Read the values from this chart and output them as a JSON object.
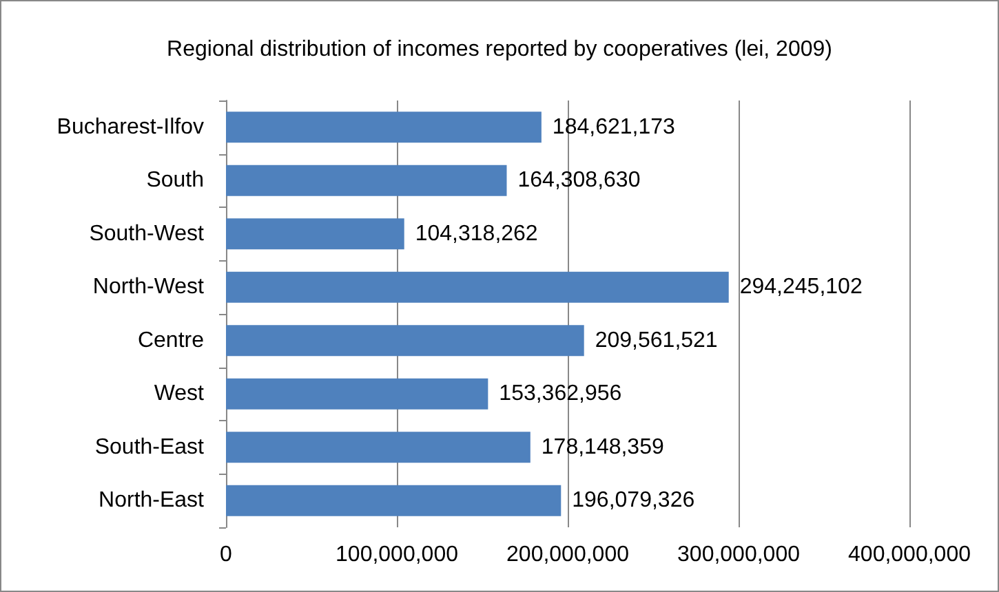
{
  "chart_data": {
    "type": "bar",
    "orientation": "horizontal",
    "title": "Regional distribution of incomes reported by cooperatives (lei, 2009)",
    "categories": [
      "Bucharest-Ilfov",
      "South",
      "South-West",
      "North-West",
      "Centre",
      "West",
      "South-East",
      "North-East"
    ],
    "values": [
      184621173,
      164308630,
      104318262,
      294245102,
      209561521,
      153362956,
      178148359,
      196079326
    ],
    "value_labels": [
      "184,621,173",
      "164,308,630",
      "104,318,262",
      "294,245,102",
      "209,561,521",
      "153,362,956",
      "178,148,359",
      "196,079,326"
    ],
    "color": "#4f81bd",
    "xlim": [
      0,
      400000000
    ],
    "xticks": [
      {
        "value": 0,
        "label": "0"
      },
      {
        "value": 100000000,
        "label": "100,000,000"
      },
      {
        "value": 200000000,
        "label": "200,000,000"
      },
      {
        "value": 300000000,
        "label": "300,000,000"
      },
      {
        "value": 400000000,
        "label": "400,000,000"
      }
    ],
    "grid": "x"
  }
}
